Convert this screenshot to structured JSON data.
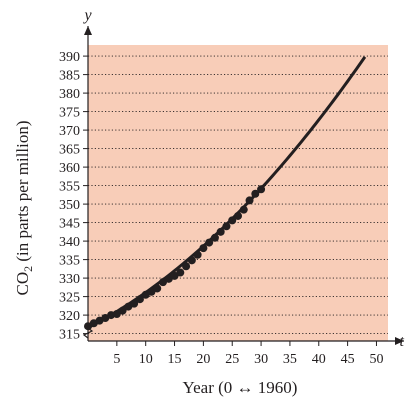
{
  "chart_data": {
    "type": "scatter",
    "title": "",
    "xlabel": "Year (0 ↔ 1960)",
    "ylabel_main": "CO",
    "ylabel_sub": "2",
    "ylabel_rest": " (in parts per million)",
    "x_axis_name": "t",
    "y_axis_name": "y",
    "xlim": [
      0,
      52
    ],
    "ylim": [
      313,
      393
    ],
    "x_ticks": [
      5,
      10,
      15,
      20,
      25,
      30,
      35,
      40,
      45,
      50
    ],
    "y_ticks": [
      315,
      320,
      325,
      330,
      335,
      340,
      345,
      350,
      355,
      360,
      365,
      370,
      375,
      380,
      385,
      390
    ],
    "y_axis_break": true,
    "grid": "horizontal dotted",
    "colors": {
      "plot_background": "#f8cdb8",
      "points": "#231f20",
      "curve": "#231f20",
      "grid": "#231f20"
    },
    "series": [
      {
        "kind": "points",
        "x": [
          0,
          1,
          2,
          3,
          4,
          5,
          6,
          7,
          8,
          9,
          10,
          11,
          12,
          13,
          14,
          15,
          16,
          17,
          18,
          19,
          20,
          21,
          22,
          23,
          24,
          25,
          26,
          27,
          28,
          29,
          30
        ],
        "y": [
          317.0,
          317.8,
          318.5,
          319.2,
          320.0,
          320.3,
          321.2,
          322.3,
          323.1,
          324.3,
          325.5,
          326.3,
          327.2,
          328.9,
          329.8,
          330.6,
          331.5,
          333.2,
          334.8,
          336.3,
          338.1,
          339.6,
          340.9,
          342.5,
          344.0,
          345.6,
          346.8,
          348.5,
          351.0,
          352.8,
          354.0
        ]
      },
      {
        "kind": "curve",
        "model": "quadratic",
        "coefficients": {
          "a": 0.0151,
          "b": 0.8002,
          "c": 316.6
        },
        "x_range": [
          0,
          48
        ]
      }
    ]
  }
}
